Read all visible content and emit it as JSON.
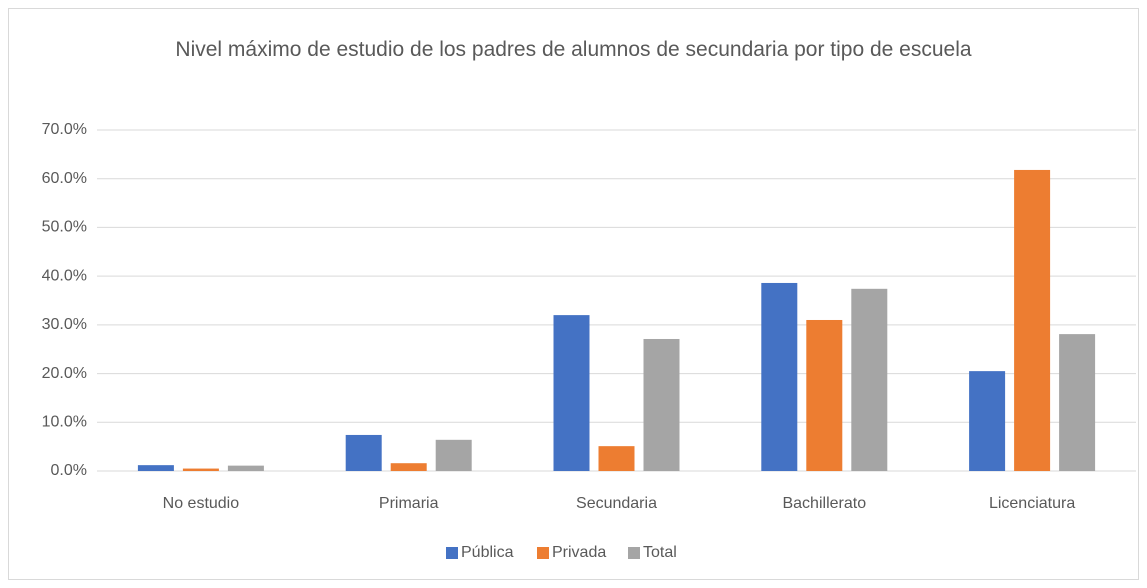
{
  "chart_data": {
    "type": "bar",
    "title": "Nivel máximo de estudio de los padres de alumnos de secundaria por tipo de escuela",
    "categories": [
      "No estudio",
      "Primaria",
      "Secundaria",
      "Bachillerato",
      "Licenciatura"
    ],
    "series": [
      {
        "name": "Pública",
        "color": "#4472c4",
        "values": [
          1.2,
          7.4,
          32.0,
          38.6,
          20.5
        ]
      },
      {
        "name": "Privada",
        "color": "#ed7d31",
        "values": [
          0.5,
          1.6,
          5.1,
          31.0,
          61.8
        ]
      },
      {
        "name": "Total",
        "color": "#a5a5a5",
        "values": [
          1.1,
          6.4,
          27.1,
          37.4,
          28.1
        ]
      }
    ],
    "ylim": [
      0,
      70
    ],
    "yticks": [
      {
        "value": 0,
        "label": "0.0%"
      },
      {
        "value": 10,
        "label": "10.0%"
      },
      {
        "value": 20,
        "label": "20.0%"
      },
      {
        "value": 30,
        "label": "30.0%"
      },
      {
        "value": 40,
        "label": "40.0%"
      },
      {
        "value": 50,
        "label": "50.0%"
      },
      {
        "value": 60,
        "label": "60.0%"
      },
      {
        "value": 70,
        "label": "70.0%"
      }
    ],
    "grid": true,
    "legend": "bottom"
  }
}
